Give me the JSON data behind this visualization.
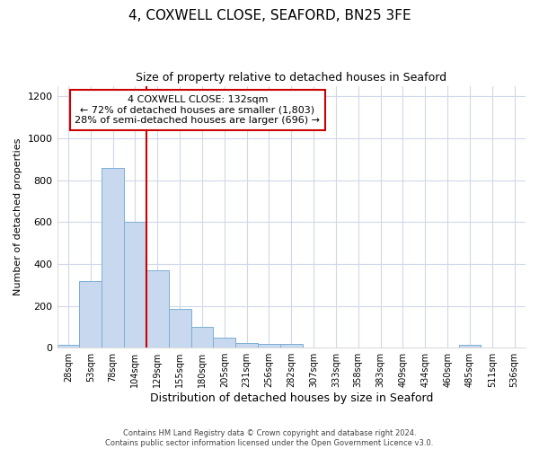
{
  "title1": "4, COXWELL CLOSE, SEAFORD, BN25 3FE",
  "title2": "Size of property relative to detached houses in Seaford",
  "xlabel": "Distribution of detached houses by size in Seaford",
  "ylabel": "Number of detached properties",
  "categories": [
    "28sqm",
    "53sqm",
    "78sqm",
    "104sqm",
    "129sqm",
    "155sqm",
    "180sqm",
    "205sqm",
    "231sqm",
    "256sqm",
    "282sqm",
    "307sqm",
    "333sqm",
    "358sqm",
    "383sqm",
    "409sqm",
    "434sqm",
    "460sqm",
    "485sqm",
    "511sqm",
    "536sqm"
  ],
  "values": [
    15,
    320,
    860,
    600,
    370,
    185,
    100,
    48,
    22,
    20,
    20,
    0,
    0,
    0,
    0,
    0,
    0,
    0,
    15,
    0,
    0
  ],
  "bar_color": "#c8d9ef",
  "bar_edge_color": "#7aafd4",
  "annotation_text": "4 COXWELL CLOSE: 132sqm\n← 72% of detached houses are smaller (1,803)\n28% of semi-detached houses are larger (696) →",
  "annotation_box_color": "#ffffff",
  "annotation_box_edge": "#cc0000",
  "highlight_line_color": "#cc0000",
  "footer_line1": "Contains HM Land Registry data © Crown copyright and database right 2024.",
  "footer_line2": "Contains public sector information licensed under the Open Government Licence v3.0.",
  "background_color": "#ffffff",
  "plot_background": "#ffffff",
  "grid_color": "#d0d8e8",
  "ylim": [
    0,
    1250
  ],
  "yticks": [
    0,
    200,
    400,
    600,
    800,
    1000,
    1200
  ],
  "title1_fontsize": 11,
  "title2_fontsize": 9,
  "xlabel_fontsize": 9,
  "ylabel_fontsize": 8
}
